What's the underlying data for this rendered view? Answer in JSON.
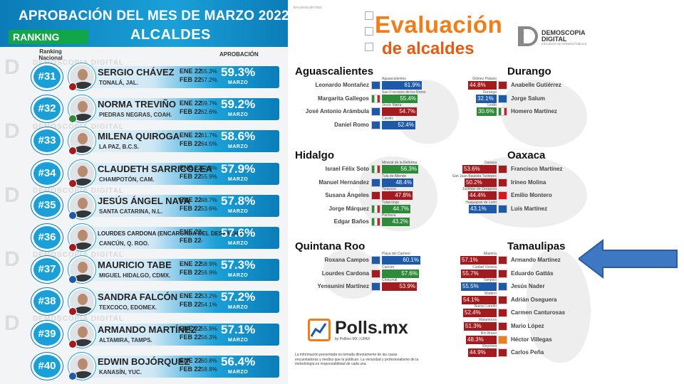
{
  "left": {
    "title": "APROBACIÓN DEL MES DE MARZO 2022",
    "ranking_label": "RANKING",
    "subtitle": "ALCALDES",
    "ranking_nacional": "Ranking Nacional",
    "aprobacion": "APROBACIÓN",
    "watermark": "DEMOSCOPIA DIGITAL",
    "m1": "ENE 22",
    "m2": "FEB 22",
    "marzo": "MARZO",
    "rows": [
      {
        "rank": "#31",
        "name": "SERGIO CHÁVEZ",
        "city": "TONALÁ, JAL.",
        "ene": "55.3%",
        "feb": "57.2%",
        "pct": "59.3%",
        "party": "morena",
        "party_color": "#a31a1f"
      },
      {
        "rank": "#32",
        "name": "NORMA TREVIÑO",
        "city": "PIEDRAS NEGRAS, COAH.",
        "ene": "59.7%",
        "feb": "62.6%",
        "pct": "59.2%",
        "party": "pri",
        "party_color": "#2e8b3a"
      },
      {
        "rank": "#33",
        "name": "MILENA QUIROGA",
        "city": "LA PAZ, B.C.S.",
        "ene": "61.7%",
        "feb": "64.5%",
        "pct": "58.6%",
        "party": "morena",
        "party_color": "#a31a1f"
      },
      {
        "rank": "#34",
        "name": "CLAUDETH SARRICOLEA",
        "city": "CHAMPOTÓN, CAM.",
        "ene": "52.4%",
        "feb": "55.9%",
        "pct": "57.9%",
        "party": "morena",
        "party_color": "#a31a1f"
      },
      {
        "rank": "#35",
        "name": "JESÚS ÁNGEL NAVA",
        "city": "SANTA CATARINA, N.L.",
        "ene": "48.7%",
        "feb": "53.6%",
        "pct": "57.8%",
        "party": "pan",
        "party_color": "#1e5aa8"
      },
      {
        "rank": "#36",
        "name": "LOURDES CARDONA (ENCARGADA DEL DESPACHO)",
        "city": "CANCÚN, Q. ROO.",
        "ene": "-",
        "feb": "-",
        "pct": "57.6%",
        "party": "morena",
        "party_color": "#a31a1f",
        "small": true
      },
      {
        "rank": "#37",
        "name": "MAURICIO TABE",
        "city": "MIGUEL HIDALGO, CDMX.",
        "ene": "58.9%",
        "feb": "56.9%",
        "pct": "57.3%",
        "party": "pan",
        "party_color": "#1e5aa8"
      },
      {
        "rank": "#38",
        "name": "SANDRA FALCÓN",
        "city": "TEXCOCO, EDOMEX.",
        "ene": "53.2%",
        "feb": "54.1%",
        "pct": "57.2%",
        "party": "morena",
        "party_color": "#a31a1f"
      },
      {
        "rank": "#39",
        "name": "ARMANDO MARTÍNEZ",
        "city": "ALTAMIRA, TAMPS.",
        "ene": "55.9%",
        "feb": "56.3%",
        "pct": "57.1%",
        "party": "morena",
        "party_color": "#a31a1f"
      },
      {
        "rank": "#40",
        "name": "EDWIN BOJÓRQUEZ",
        "city": "KANASÍN, YUC.",
        "ene": "60.8%",
        "feb": "58.8%",
        "pct": "56.4%",
        "party": "pan",
        "party_color": "#1e5aa8"
      }
    ]
  },
  "right": {
    "tiny_top": "Encuesta del mes",
    "title1": "Evaluación",
    "title2": "de alcaldes",
    "brand1": "DEMOSCOPIA",
    "brand2": "DIGITAL",
    "brand3": "ESTUDIOS DE OPINIÓN PÚBLICA",
    "states": [
      {
        "name": "Aguascalientes",
        "side": "left",
        "rows": [
          {
            "city": "Aguascalientes",
            "name": "Leonardo Montañez",
            "val": "61.9%",
            "color": "blue",
            "party": "PAN",
            "pct": 61.9
          },
          {
            "city": "San Francisco de los Romo",
            "name": "Margarita Gallegos",
            "val": "55.4%",
            "color": "green",
            "party": "PRI",
            "pct": 55.4
          },
          {
            "city": "Jesús María",
            "name": "José Antonio Arámbula",
            "val": "54.7%",
            "color": "red",
            "party": "PAN",
            "pct": 54.7
          },
          {
            "city": "Calvillo",
            "name": "Daniel Romo",
            "val": "52.4%",
            "color": "blue",
            "party": "PAN",
            "pct": 52.4
          }
        ]
      },
      {
        "name": "Durango",
        "side": "right",
        "rows": [
          {
            "city": "Gómez Palacio",
            "name": "Anabelle Gutiérrez",
            "val": "44.8%",
            "color": "red",
            "party": "MOR",
            "pct": 44.8
          },
          {
            "city": "Durango",
            "name": "Jorge Salum",
            "val": "32.1%",
            "color": "blue",
            "party": "PAN",
            "pct": 32.1
          },
          {
            "city": "Lerdo",
            "name": "Homero Martínez",
            "val": "30.6%",
            "color": "green",
            "party": "PRI",
            "pct": 30.6
          }
        ]
      },
      {
        "name": "Hidalgo",
        "side": "left",
        "rows": [
          {
            "city": "Mineral de la Reforma",
            "name": "Israel Félix Soto",
            "val": "56.3%",
            "color": "green",
            "party": "PRI",
            "pct": 56.3
          },
          {
            "city": "Tula de Allende",
            "name": "Manuel Hernández",
            "val": "48.4%",
            "color": "blue",
            "party": "PAN",
            "pct": 48.4
          },
          {
            "city": "Tizayuca",
            "name": "Susana Ángeles",
            "val": "47.8%",
            "color": "red",
            "party": "MOR",
            "pct": 47.8
          },
          {
            "city": "Tulancingo",
            "name": "Jorge Márquez",
            "val": "44.7%",
            "color": "green",
            "party": "PRI",
            "pct": 44.7
          },
          {
            "city": "Pachuca",
            "name": "Edgar Baños",
            "val": "43.2%",
            "color": "green",
            "party": "PRI",
            "pct": 43.2
          }
        ]
      },
      {
        "name": "Oaxaca",
        "side": "right",
        "rows": [
          {
            "city": "Oaxaca",
            "name": "Francisco Martínez",
            "val": "53.6%",
            "color": "red",
            "party": "MOR",
            "pct": 53.6
          },
          {
            "city": "San Juan Bautista Tuxtepec",
            "name": "Irineo Molina",
            "val": "50.2%",
            "color": "red",
            "party": "MOR",
            "pct": 50.2
          },
          {
            "city": "Juchitán de Zaragoza",
            "name": "Emilio Montero",
            "val": "44.4%",
            "color": "red",
            "party": "PT",
            "pct": 44.4
          },
          {
            "city": "Huajuapan de León",
            "name": "Luis Martínez",
            "val": "43.1%",
            "color": "blue",
            "party": "PAN",
            "pct": 43.1
          }
        ]
      },
      {
        "name": "Quintana Roo",
        "side": "left",
        "rows": [
          {
            "city": "Playa del Carmen",
            "name": "Roxana Campos",
            "val": "60.1%",
            "color": "blue",
            "party": "PAN",
            "pct": 60.1
          },
          {
            "city": "Cancún",
            "name": "Lourdes Cardona",
            "val": "57.6%",
            "color": "green",
            "party": "MOR",
            "pct": 57.6
          },
          {
            "city": "Chetumal",
            "name": "Yensunini Martínez",
            "val": "53.9%",
            "color": "red",
            "party": "PAN",
            "pct": 53.9
          }
        ]
      },
      {
        "name": "Tamaulipas",
        "side": "right",
        "rows": [
          {
            "city": "Altamira",
            "name": "Armando Martínez",
            "val": "57.1%",
            "color": "red",
            "party": "MOR",
            "pct": 57.1
          },
          {
            "city": "Ciudad Victoria",
            "name": "Eduardo Gattás",
            "val": "55.7%",
            "color": "red",
            "party": "MOR",
            "pct": 55.7
          },
          {
            "city": "Tampico",
            "name": "Jesús Nader",
            "val": "55.5%",
            "color": "blue",
            "party": "PAN",
            "pct": 55.5
          },
          {
            "city": "Madero",
            "name": "Adrián Oseguera",
            "val": "54.1%",
            "color": "red",
            "party": "MOR",
            "pct": 54.1
          },
          {
            "city": "Nuevo Laredo",
            "name": "Carmen Canturosas",
            "val": "52.4%",
            "color": "red",
            "party": "MOR",
            "pct": 52.4
          },
          {
            "city": "Matamoros",
            "name": "Mario López",
            "val": "51.3%",
            "color": "red",
            "party": "MOR",
            "pct": 51.3
          },
          {
            "city": "Río Bravo",
            "name": "Héctor Villegas",
            "val": "48.3%",
            "color": "red",
            "party": "MC",
            "pct": 48.3
          },
          {
            "city": "Reynosa",
            "name": "Carlos Peña",
            "val": "44.9%",
            "color": "red",
            "party": "MOR",
            "pct": 44.9
          }
        ]
      }
    ],
    "polls": "Polls.mx",
    "polls_sub": "by Político MX | UPAX",
    "disclaimer": "La información presentada es tomada directamente de las casas encuestadoras y medios que la publican. La veracidad y profesionalismo de la metodología es responsabilidad de cada una."
  }
}
